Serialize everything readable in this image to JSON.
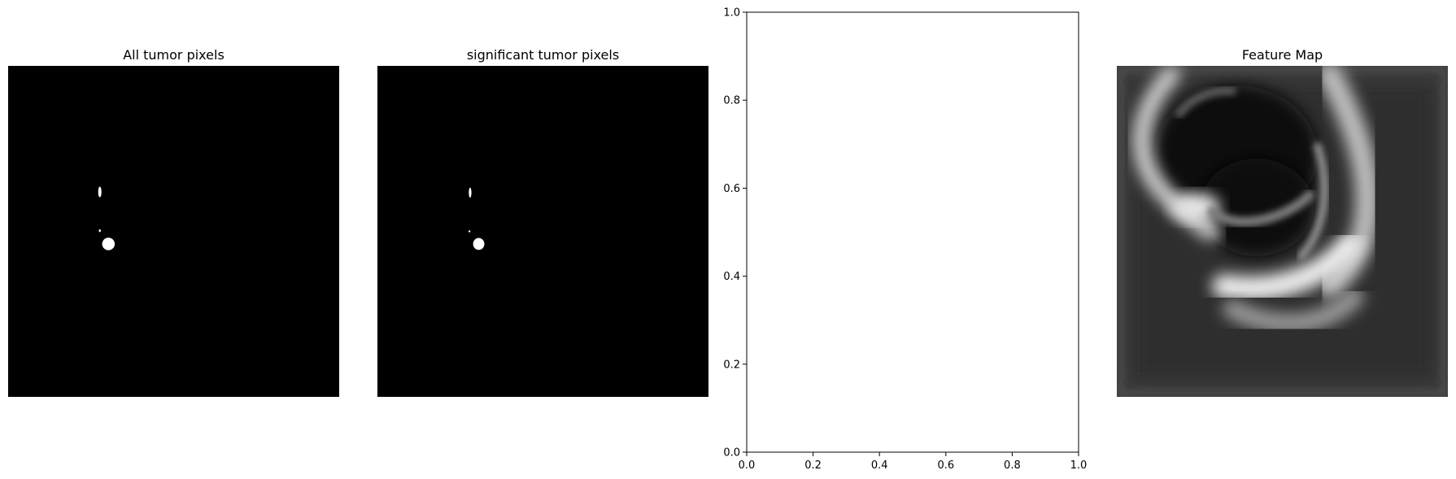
{
  "panels": [
    {
      "title": "All tumor pixels"
    },
    {
      "title": "significant tumor pixels"
    },
    {
      "title": ""
    },
    {
      "title": "Feature Map"
    }
  ],
  "chart_data": [
    {
      "type": "image",
      "title": "All tumor pixels",
      "colormap": "gray",
      "axes": "off",
      "background": "#000000",
      "blobs": [
        {
          "cx": 0.277,
          "cy": 0.381,
          "rx": 0.005,
          "ry": 0.016
        },
        {
          "cx": 0.277,
          "cy": 0.498,
          "rx": 0.003,
          "ry": 0.004
        },
        {
          "cx": 0.303,
          "cy": 0.538,
          "rx": 0.019,
          "ry": 0.019
        }
      ]
    },
    {
      "type": "image",
      "title": "significant tumor pixels",
      "colormap": "gray",
      "axes": "off",
      "background": "#000000",
      "blobs": [
        {
          "cx": 0.28,
          "cy": 0.383,
          "rx": 0.004,
          "ry": 0.015
        },
        {
          "cx": 0.278,
          "cy": 0.5,
          "rx": 0.002,
          "ry": 0.003
        },
        {
          "cx": 0.306,
          "cy": 0.538,
          "rx": 0.017,
          "ry": 0.018
        }
      ]
    },
    {
      "type": "scatter",
      "title": "",
      "xlim": [
        0,
        1
      ],
      "ylim": [
        0,
        1
      ],
      "xticks": [
        "0.0",
        "0.2",
        "0.4",
        "0.6",
        "0.8",
        "1.0"
      ],
      "yticks": [
        "0.0",
        "0.2",
        "0.4",
        "0.6",
        "0.8",
        "1.0"
      ],
      "series": []
    },
    {
      "type": "heatmap",
      "title": "Feature Map",
      "colormap": "gray",
      "axes": "off"
    }
  ],
  "colors": {
    "background": "#ffffff",
    "image_background": "#000000",
    "blob": "#ffffff",
    "feature_base": "#3b3b3b",
    "axis": "#000000"
  }
}
